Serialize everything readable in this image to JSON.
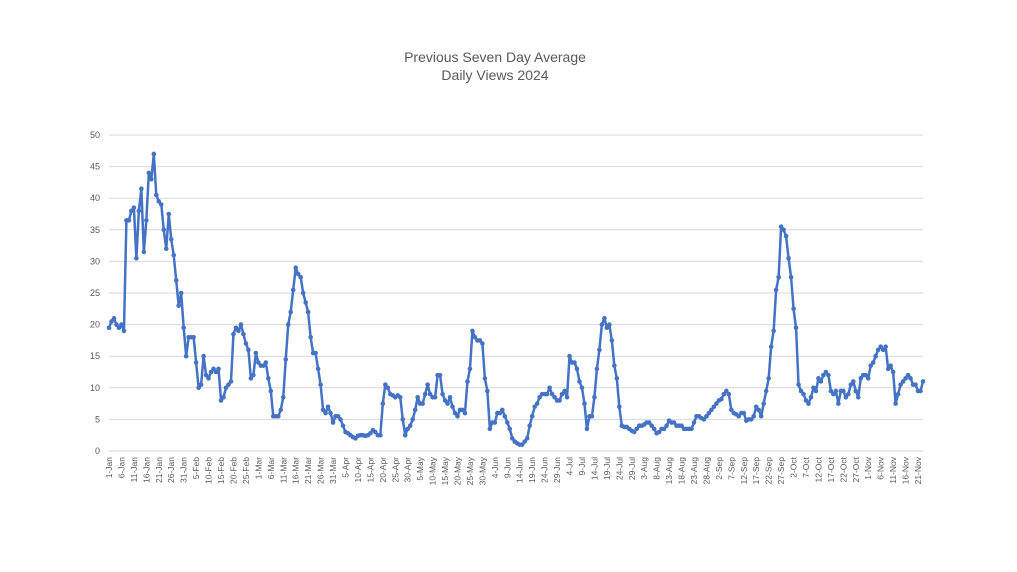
{
  "chart_data": {
    "type": "line",
    "title": "Previous Seven Day Average",
    "subtitle": "Daily Views 2024",
    "xlabel": "",
    "ylabel": "",
    "ylim": [
      0,
      50
    ],
    "yticks": [
      0,
      5,
      10,
      15,
      20,
      25,
      30,
      35,
      40,
      45,
      50
    ],
    "grid": true,
    "legend": "none",
    "color": "#4472c4",
    "x_tick_labels": [
      "1-Jan",
      "6-Jan",
      "11-Jan",
      "16-Jan",
      "21-Jan",
      "26-Jan",
      "31-Jan",
      "5-Feb",
      "10-Feb",
      "15-Feb",
      "20-Feb",
      "25-Feb",
      "1-Mar",
      "6-Mar",
      "11-Mar",
      "16-Mar",
      "21-Mar",
      "26-Mar",
      "31-Mar",
      "5-Apr",
      "10-Apr",
      "15-Apr",
      "20-Apr",
      "25-Apr",
      "30-Apr",
      "5-May",
      "10-May",
      "15-May",
      "20-May",
      "25-May",
      "30-May",
      "4-Jun",
      "9-Jun",
      "14-Jun",
      "19-Jun",
      "24-Jun",
      "29-Jun",
      "4-Jul",
      "9-Jul",
      "14-Jul",
      "19-Jul",
      "24-Jul",
      "29-Jul",
      "3-Aug",
      "8-Aug",
      "13-Aug",
      "18-Aug",
      "23-Aug",
      "28-Aug",
      "2-Sep",
      "7-Sep",
      "12-Sep",
      "17-Sep",
      "22-Sep",
      "27-Sep",
      "2-Oct",
      "7-Oct",
      "12-Oct",
      "17-Oct",
      "22-Oct",
      "27-Oct",
      "1-Nov",
      "6-Nov",
      "11-Nov",
      "16-Nov",
      "21-Nov"
    ],
    "x_start": "1-Jan",
    "x_end": "22-Nov",
    "series": [
      {
        "values": [
          19.5,
          20.5,
          21,
          20,
          19.5,
          20,
          19,
          36.5,
          36.5,
          38,
          38.5,
          30.5,
          38,
          41.5,
          31.5,
          36.5,
          44,
          43,
          47,
          40.5,
          39.5,
          39,
          35,
          32,
          37.5,
          33.5,
          31,
          27,
          23,
          25,
          19.5,
          15,
          18,
          18,
          18,
          14,
          10,
          10.5,
          15,
          12,
          11.5,
          12.5,
          13,
          12.5,
          13,
          8,
          8.5,
          10,
          10.5,
          11,
          18.5,
          19.5,
          19,
          20,
          18.5,
          17,
          16,
          11.5,
          12,
          15.5,
          14,
          13.5,
          13.5,
          14,
          11.5,
          9.5,
          5.5,
          5.5,
          5.5,
          6.5,
          8.5,
          14.5,
          20,
          22,
          25.5,
          29,
          28,
          27.5,
          25,
          23.5,
          22,
          18,
          15.5,
          15.5,
          13,
          10.5,
          6.5,
          6,
          7,
          6,
          4.5,
          5.5,
          5.5,
          5,
          4,
          3,
          2.8,
          2.5,
          2.2,
          2,
          2.4,
          2.5,
          2.5,
          2.4,
          2.5,
          2.8,
          3.3,
          3,
          2.5,
          2.5,
          7.5,
          10.5,
          10,
          9,
          8.8,
          8.5,
          8.8,
          8.5,
          5,
          2.5,
          3.5,
          4,
          5,
          6.5,
          8.5,
          7.5,
          7.5,
          9,
          10.5,
          9,
          8.5,
          8.5,
          12,
          12,
          9,
          8,
          7.5,
          8.5,
          7,
          6,
          5.5,
          6.5,
          6.5,
          6,
          11,
          13,
          19,
          18,
          17.5,
          17.5,
          17,
          11.5,
          9.5,
          3.5,
          4.5,
          4.5,
          6,
          6,
          6.5,
          5.5,
          4.5,
          3.5,
          2,
          1.5,
          1.2,
          1,
          1,
          1.5,
          2,
          4,
          5.5,
          7,
          7.5,
          8.5,
          9,
          9,
          9,
          10,
          9,
          8.5,
          8,
          8,
          9,
          9.5,
          8.5,
          15,
          14,
          14,
          13,
          11,
          10,
          7.5,
          3.5,
          5.5,
          5.5,
          8.5,
          13,
          16,
          20,
          21,
          19.5,
          20,
          17.5,
          13.5,
          11.5,
          7,
          4,
          3.8,
          3.8,
          3.5,
          3.2,
          3,
          3.5,
          4,
          4,
          4.2,
          4.5,
          4.5,
          4,
          3.5,
          2.8,
          3,
          3.5,
          3.5,
          4,
          4.8,
          4.5,
          4.5,
          4,
          4,
          4,
          3.5,
          3.5,
          3.5,
          3.5,
          4.5,
          5.5,
          5.5,
          5.2,
          5,
          5.5,
          6,
          6.5,
          7,
          7.5,
          8,
          8.2,
          9,
          9.5,
          9,
          6.5,
          6,
          5.8,
          5.5,
          6,
          6,
          4.8,
          5,
          5,
          5.5,
          7,
          6.5,
          5.5,
          7.5,
          9.5,
          11.5,
          16.5,
          19,
          25.5,
          27.5,
          35.5,
          35,
          34,
          30.5,
          27.5,
          22.5,
          19.5,
          10.5,
          9.5,
          9,
          8,
          7.5,
          8.5,
          10,
          9.5,
          11.5,
          11,
          12,
          12.5,
          12,
          9.5,
          9,
          9.5,
          7.5,
          9.5,
          9.5,
          8.5,
          9,
          10.5,
          11,
          9.5,
          8.5,
          11.5,
          12,
          12,
          11.5,
          13.5,
          14,
          15,
          16,
          16.5,
          16,
          16.5,
          13,
          13.5,
          12.5,
          7.5,
          9,
          10.5,
          11,
          11.5,
          12,
          11.5,
          10.5,
          10.5,
          9.5,
          9.5,
          11
        ]
      }
    ]
  }
}
